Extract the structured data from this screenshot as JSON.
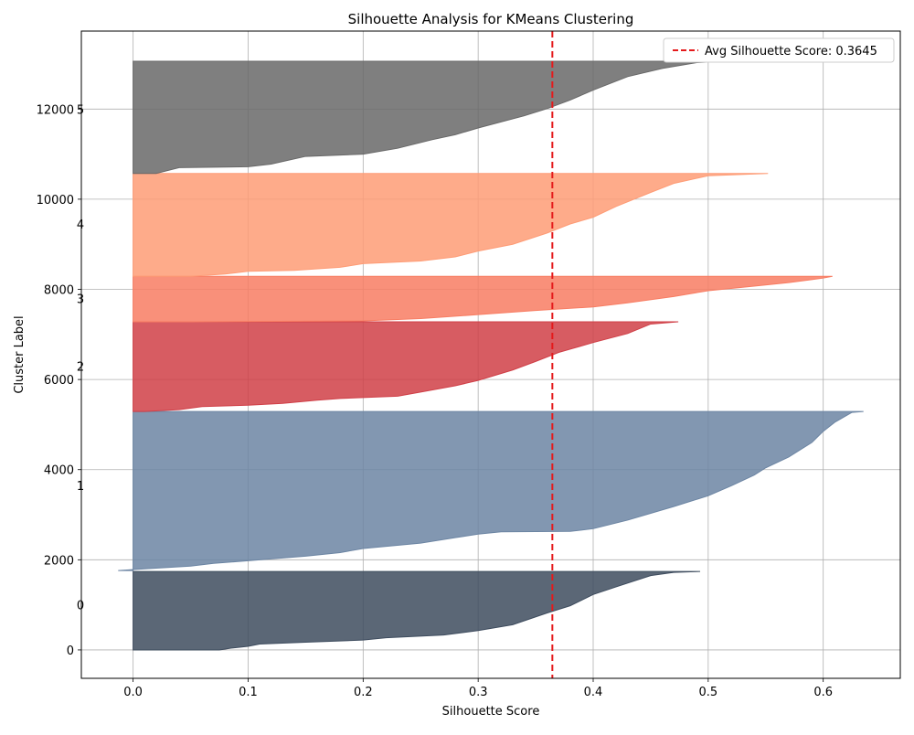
{
  "chart_data": {
    "type": "area",
    "title": "Silhouette Analysis for KMeans Clustering",
    "xlabel": "Silhouette Score",
    "ylabel": "Cluster Label",
    "xlim": [
      -0.045,
      0.667
    ],
    "ylim": [
      -630,
      13730
    ],
    "grid": true,
    "x_ticks": [
      0.0,
      0.1,
      0.2,
      0.3,
      0.4,
      0.5,
      0.6
    ],
    "x_tick_labels": [
      "0.0",
      "0.1",
      "0.2",
      "0.3",
      "0.4",
      "0.5",
      "0.6"
    ],
    "y_ticks": [
      0,
      2000,
      4000,
      6000,
      8000,
      10000,
      12000
    ],
    "y_tick_labels": [
      "0",
      "2000",
      "4000",
      "6000",
      "8000",
      "10000",
      "12000"
    ],
    "reference_line": {
      "x": 0.3645,
      "label": "Avg Silhouette Score: 0.3645",
      "color": "#e41a1c",
      "style": "dashed"
    },
    "legend_position": "top-right",
    "clusters": [
      {
        "label": "0",
        "y_start": 0,
        "y_end": 1740,
        "label_y": 1000,
        "color": "#3e4c5e",
        "profile": [
          [
            0.075,
            0
          ],
          [
            0.085,
            40
          ],
          [
            0.1,
            80
          ],
          [
            0.11,
            130
          ],
          [
            0.15,
            170
          ],
          [
            0.2,
            220
          ],
          [
            0.22,
            270
          ],
          [
            0.27,
            330
          ],
          [
            0.3,
            430
          ],
          [
            0.33,
            560
          ],
          [
            0.36,
            820
          ],
          [
            0.38,
            980
          ],
          [
            0.4,
            1230
          ],
          [
            0.42,
            1400
          ],
          [
            0.45,
            1650
          ],
          [
            0.47,
            1720
          ],
          [
            0.493,
            1740
          ]
        ]
      },
      {
        "label": "1",
        "y_start": 1760,
        "y_end": 5290,
        "label_y": 3650,
        "color": "#6c85a3",
        "profile": [
          [
            -0.013,
            1760
          ],
          [
            0.01,
            1800
          ],
          [
            0.05,
            1860
          ],
          [
            0.07,
            1920
          ],
          [
            0.1,
            1980
          ],
          [
            0.15,
            2080
          ],
          [
            0.18,
            2160
          ],
          [
            0.2,
            2250
          ],
          [
            0.25,
            2370
          ],
          [
            0.28,
            2490
          ],
          [
            0.3,
            2570
          ],
          [
            0.32,
            2620
          ],
          [
            0.38,
            2630
          ],
          [
            0.4,
            2690
          ],
          [
            0.43,
            2880
          ],
          [
            0.47,
            3180
          ],
          [
            0.5,
            3420
          ],
          [
            0.52,
            3640
          ],
          [
            0.54,
            3880
          ],
          [
            0.55,
            4040
          ],
          [
            0.57,
            4280
          ],
          [
            0.59,
            4600
          ],
          [
            0.6,
            4850
          ],
          [
            0.61,
            5050
          ],
          [
            0.625,
            5270
          ],
          [
            0.635,
            5290
          ]
        ]
      },
      {
        "label": "2",
        "y_start": 5290,
        "y_end": 7280,
        "label_y": 6300,
        "color": "#d03f47",
        "profile": [
          [
            0.01,
            5290
          ],
          [
            0.04,
            5330
          ],
          [
            0.06,
            5400
          ],
          [
            0.1,
            5430
          ],
          [
            0.13,
            5470
          ],
          [
            0.16,
            5540
          ],
          [
            0.18,
            5580
          ],
          [
            0.23,
            5630
          ],
          [
            0.25,
            5720
          ],
          [
            0.28,
            5860
          ],
          [
            0.3,
            5980
          ],
          [
            0.33,
            6210
          ],
          [
            0.35,
            6400
          ],
          [
            0.37,
            6600
          ],
          [
            0.4,
            6820
          ],
          [
            0.43,
            7020
          ],
          [
            0.45,
            7230
          ],
          [
            0.474,
            7280
          ]
        ]
      },
      {
        "label": "3",
        "y_start": 7280,
        "y_end": 8290,
        "label_y": 7800,
        "color": "#f87d63",
        "profile": [
          [
            0.05,
            7280
          ],
          [
            0.2,
            7300
          ],
          [
            0.25,
            7350
          ],
          [
            0.3,
            7440
          ],
          [
            0.35,
            7530
          ],
          [
            0.4,
            7610
          ],
          [
            0.43,
            7700
          ],
          [
            0.47,
            7840
          ],
          [
            0.5,
            7970
          ],
          [
            0.54,
            8070
          ],
          [
            0.57,
            8150
          ],
          [
            0.6,
            8250
          ],
          [
            0.608,
            8290
          ]
        ]
      },
      {
        "label": "4",
        "y_start": 8290,
        "y_end": 10570,
        "label_y": 9450,
        "color": "#fe9c76",
        "profile": [
          [
            0.05,
            8290
          ],
          [
            0.08,
            8340
          ],
          [
            0.1,
            8400
          ],
          [
            0.14,
            8420
          ],
          [
            0.18,
            8490
          ],
          [
            0.2,
            8570
          ],
          [
            0.25,
            8630
          ],
          [
            0.28,
            8720
          ],
          [
            0.3,
            8850
          ],
          [
            0.33,
            9000
          ],
          [
            0.36,
            9250
          ],
          [
            0.38,
            9450
          ],
          [
            0.4,
            9600
          ],
          [
            0.42,
            9840
          ],
          [
            0.45,
            10150
          ],
          [
            0.47,
            10350
          ],
          [
            0.5,
            10520
          ],
          [
            0.552,
            10570
          ]
        ]
      },
      {
        "label": "5",
        "y_start": 10570,
        "y_end": 13060,
        "label_y": 12000,
        "color": "#686868",
        "profile": [
          [
            0.02,
            10570
          ],
          [
            0.04,
            10700
          ],
          [
            0.1,
            10720
          ],
          [
            0.12,
            10780
          ],
          [
            0.15,
            10950
          ],
          [
            0.2,
            11000
          ],
          [
            0.23,
            11130
          ],
          [
            0.26,
            11320
          ],
          [
            0.28,
            11430
          ],
          [
            0.3,
            11580
          ],
          [
            0.34,
            11850
          ],
          [
            0.36,
            12010
          ],
          [
            0.38,
            12200
          ],
          [
            0.4,
            12420
          ],
          [
            0.43,
            12720
          ],
          [
            0.46,
            12900
          ],
          [
            0.49,
            13030
          ],
          [
            0.515,
            13060
          ]
        ]
      }
    ]
  }
}
